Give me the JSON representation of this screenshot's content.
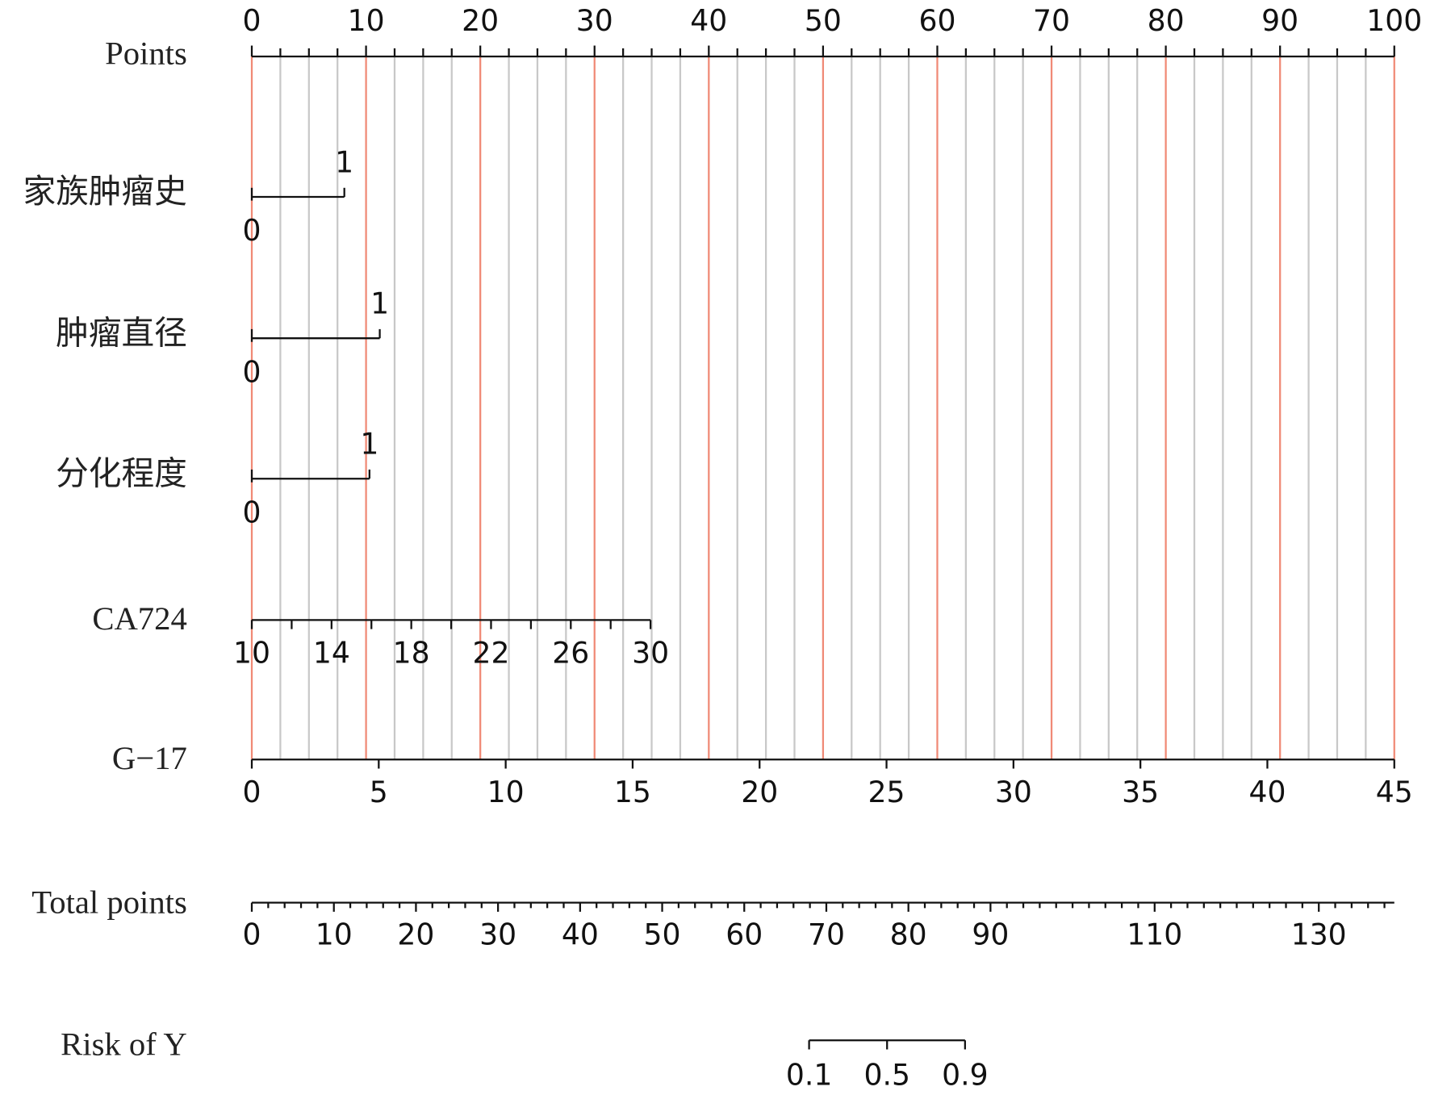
{
  "chart_data": {
    "type": "nomogram",
    "points_axis": {
      "label": "Points",
      "xlim": [
        0,
        100
      ],
      "ticks": [
        0,
        10,
        20,
        30,
        40,
        50,
        60,
        70,
        80,
        90,
        100
      ],
      "minor_ticks": [
        2.5,
        5,
        7.5,
        12.5,
        15,
        17.5,
        22.5,
        25,
        27.5,
        32.5,
        35,
        37.5,
        42.5,
        45,
        47.5,
        52.5,
        55,
        57.5,
        62.5,
        65,
        67.5,
        72.5,
        75,
        77.5,
        82.5,
        85,
        87.5,
        92.5,
        95,
        97.5
      ],
      "major_color": "#f08a76",
      "minor_color": "#c8c8c8"
    },
    "variables": [
      {
        "name": "家族肿瘤史",
        "kind": "categorical",
        "levels": [
          0,
          1
        ],
        "points": [
          0,
          8.1
        ]
      },
      {
        "name": "肿瘤直径",
        "kind": "categorical",
        "levels": [
          0,
          1
        ],
        "points": [
          0,
          11.2
        ]
      },
      {
        "name": "分化程度",
        "kind": "categorical",
        "levels": [
          0,
          1
        ],
        "points": [
          0,
          10.3
        ]
      },
      {
        "name": "CA724",
        "kind": "continuous",
        "xlim": [
          10,
          30
        ],
        "points": [
          0,
          34.9
        ],
        "ticks": [
          10,
          14,
          18,
          22,
          26,
          30
        ],
        "minor_ticks": [
          12,
          16,
          20,
          24,
          28
        ]
      },
      {
        "name": "G−17",
        "kind": "continuous",
        "xlim": [
          0,
          45
        ],
        "points": [
          0,
          100
        ],
        "ticks": [
          0,
          5,
          10,
          15,
          20,
          25,
          30,
          35,
          40,
          45
        ],
        "minor_ticks": []
      }
    ],
    "total_points": {
      "label": "Total points",
      "xlim": [
        0,
        139.2
      ],
      "ticks": [
        0,
        10,
        20,
        30,
        40,
        50,
        60,
        70,
        80,
        90,
        110,
        130
      ],
      "minor_ticks": [
        2,
        4,
        6,
        8,
        12,
        14,
        16,
        18,
        22,
        24,
        26,
        28,
        32,
        34,
        36,
        38,
        42,
        44,
        46,
        48,
        52,
        54,
        56,
        58,
        62,
        64,
        66,
        68,
        72,
        74,
        76,
        78,
        82,
        84,
        86,
        88,
        92,
        94,
        96,
        98,
        100,
        102,
        104,
        106,
        108,
        112,
        114,
        116,
        118,
        120,
        122,
        124,
        126,
        128,
        132,
        134,
        136,
        138
      ]
    },
    "risk": {
      "label": "Risk of Y",
      "ticks": [
        0.1,
        0.5,
        0.9
      ],
      "total_points": [
        67.9,
        77.4,
        86.9
      ]
    }
  }
}
